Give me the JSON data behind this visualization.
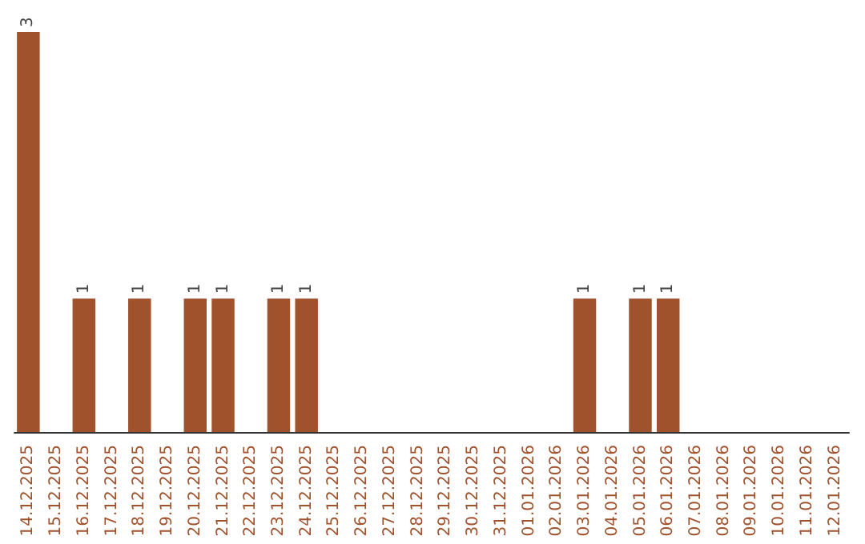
{
  "chart_data": {
    "type": "bar",
    "categories": [
      "14.12.2025",
      "15.12.2025",
      "16.12.2025",
      "17.12.2025",
      "18.12.2025",
      "19.12.2025",
      "20.12.2025",
      "21.12.2025",
      "22.12.2025",
      "23.12.2025",
      "24.12.2025",
      "25.12.2025",
      "26.12.2025",
      "27.12.2025",
      "28.12.2025",
      "29.12.2025",
      "30.12.2025",
      "31.12.2025",
      "01.01.2026",
      "02.01.2026",
      "03.01.2026",
      "04.01.2026",
      "05.01.2026",
      "06.01.2026",
      "07.01.2026",
      "08.01.2026",
      "09.01.2026",
      "10.01.2026",
      "11.01.2026",
      "12.01.2026"
    ],
    "values": [
      3,
      0,
      1,
      0,
      1,
      0,
      1,
      1,
      0,
      1,
      1,
      0,
      0,
      0,
      0,
      0,
      0,
      0,
      0,
      0,
      1,
      0,
      1,
      1,
      0,
      0,
      0,
      0,
      0,
      0
    ],
    "value_labels": [
      "3",
      null,
      "1",
      null,
      "1",
      null,
      "1",
      "1",
      null,
      "1",
      "1",
      null,
      null,
      null,
      null,
      null,
      null,
      null,
      null,
      null,
      "1",
      null,
      "1",
      "1",
      null,
      null,
      null,
      null,
      null,
      null
    ],
    "color": "#a0522d",
    "tick_labels": "x"
  }
}
